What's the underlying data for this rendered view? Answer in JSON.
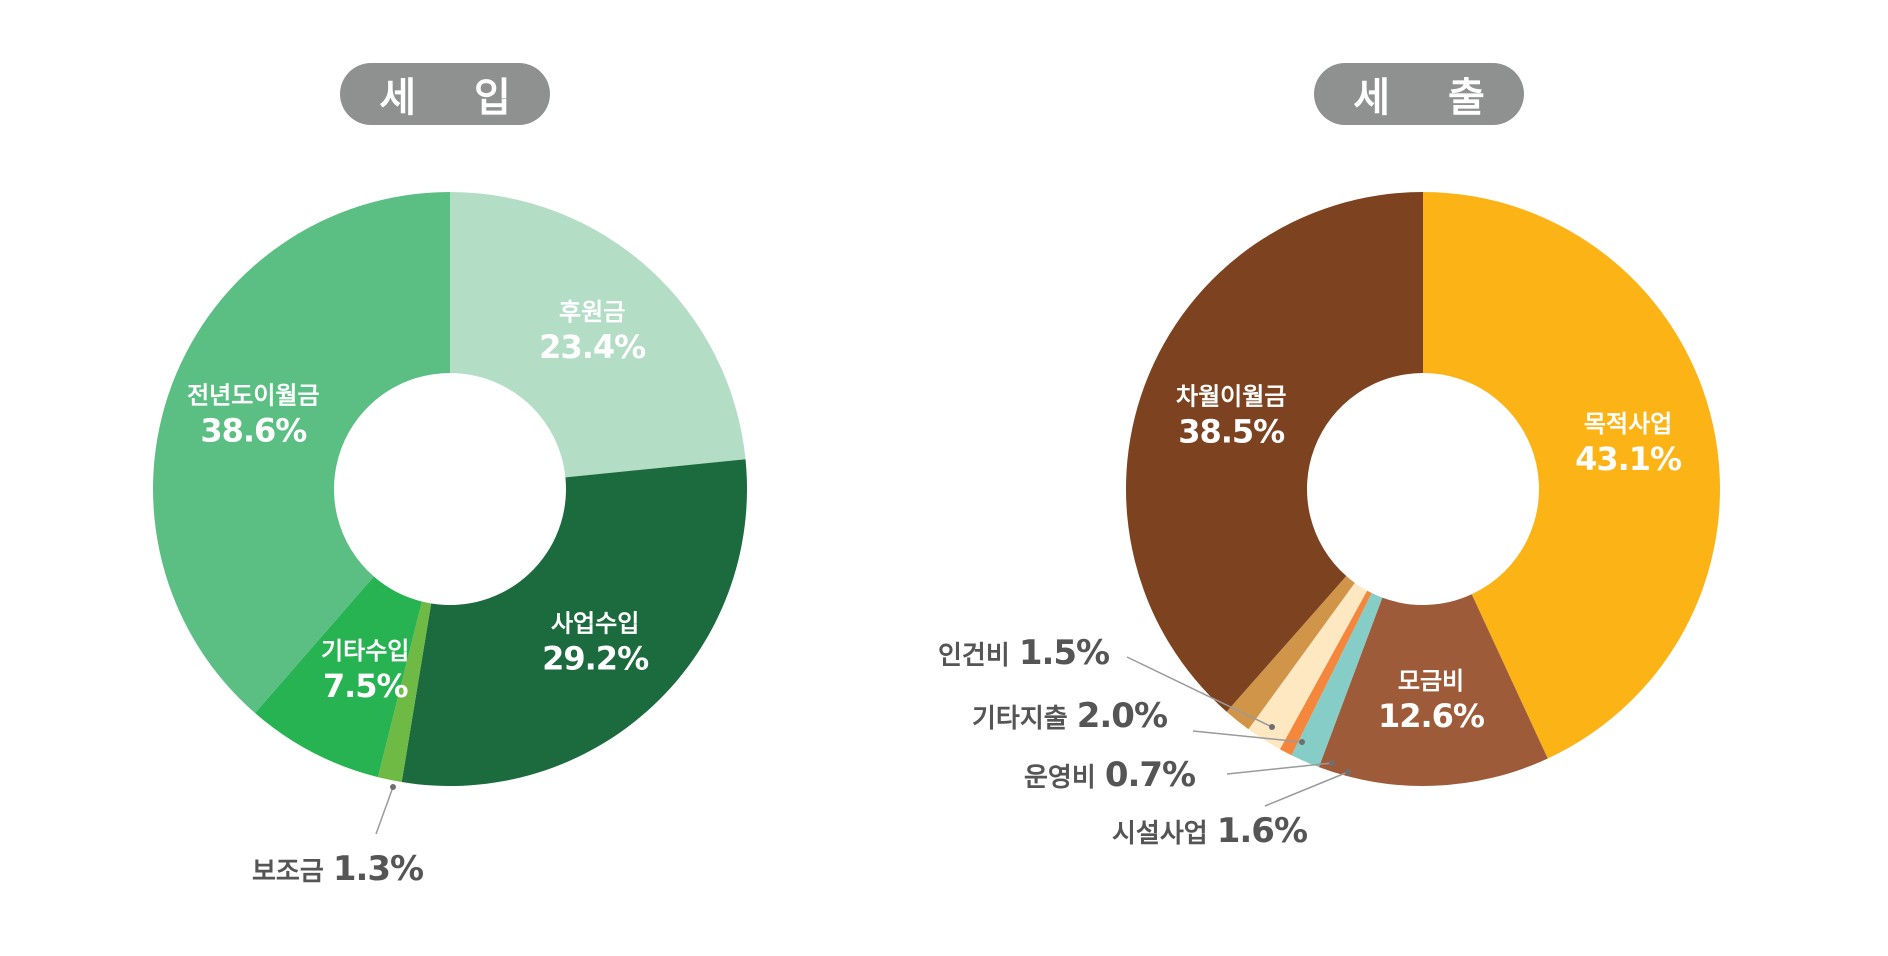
{
  "chart_data": [
    {
      "type": "pie",
      "title": "세 입",
      "slices": [
        {
          "label": "후원금",
          "value": 23.4,
          "value_text": "23.4%",
          "color": "#b3ddc5",
          "label_style": "inside"
        },
        {
          "label": "사업수입",
          "value": 29.2,
          "value_text": "29.2%",
          "color": "#1c6b3f",
          "label_style": "inside"
        },
        {
          "label": "보조금",
          "value": 1.3,
          "value_text": "1.3%",
          "color": "#6fba44",
          "label_style": "callout"
        },
        {
          "label": "기타수입",
          "value": 7.5,
          "value_text": "7.5%",
          "color": "#27b352",
          "label_style": "inside"
        },
        {
          "label": "전년도이월금",
          "value": 38.6,
          "value_text": "38.6%",
          "color": "#5bbf84",
          "label_style": "inside"
        }
      ]
    },
    {
      "type": "pie",
      "title": "세 출",
      "slices": [
        {
          "label": "목적사업",
          "value": 43.1,
          "value_text": "43.1%",
          "color": "#fcb316",
          "label_style": "inside"
        },
        {
          "label": "모금비",
          "value": 12.6,
          "value_text": "12.6%",
          "color": "#9e5b3a",
          "label_style": "inside"
        },
        {
          "label": "시설사업",
          "value": 1.6,
          "value_text": "1.6%",
          "color": "#86cdc7",
          "label_style": "callout"
        },
        {
          "label": "운영비",
          "value": 0.7,
          "value_text": "0.7%",
          "color": "#f5873c",
          "label_style": "callout"
        },
        {
          "label": "기타지출",
          "value": 2.0,
          "value_text": "2.0%",
          "color": "#fde8c2",
          "label_style": "callout"
        },
        {
          "label": "인건비",
          "value": 1.5,
          "value_text": "1.5%",
          "color": "#d1954a",
          "label_style": "callout"
        },
        {
          "label": "차월이월금",
          "value": 38.5,
          "value_text": "38.5%",
          "color": "#7d421f",
          "label_style": "inside"
        }
      ]
    }
  ]
}
